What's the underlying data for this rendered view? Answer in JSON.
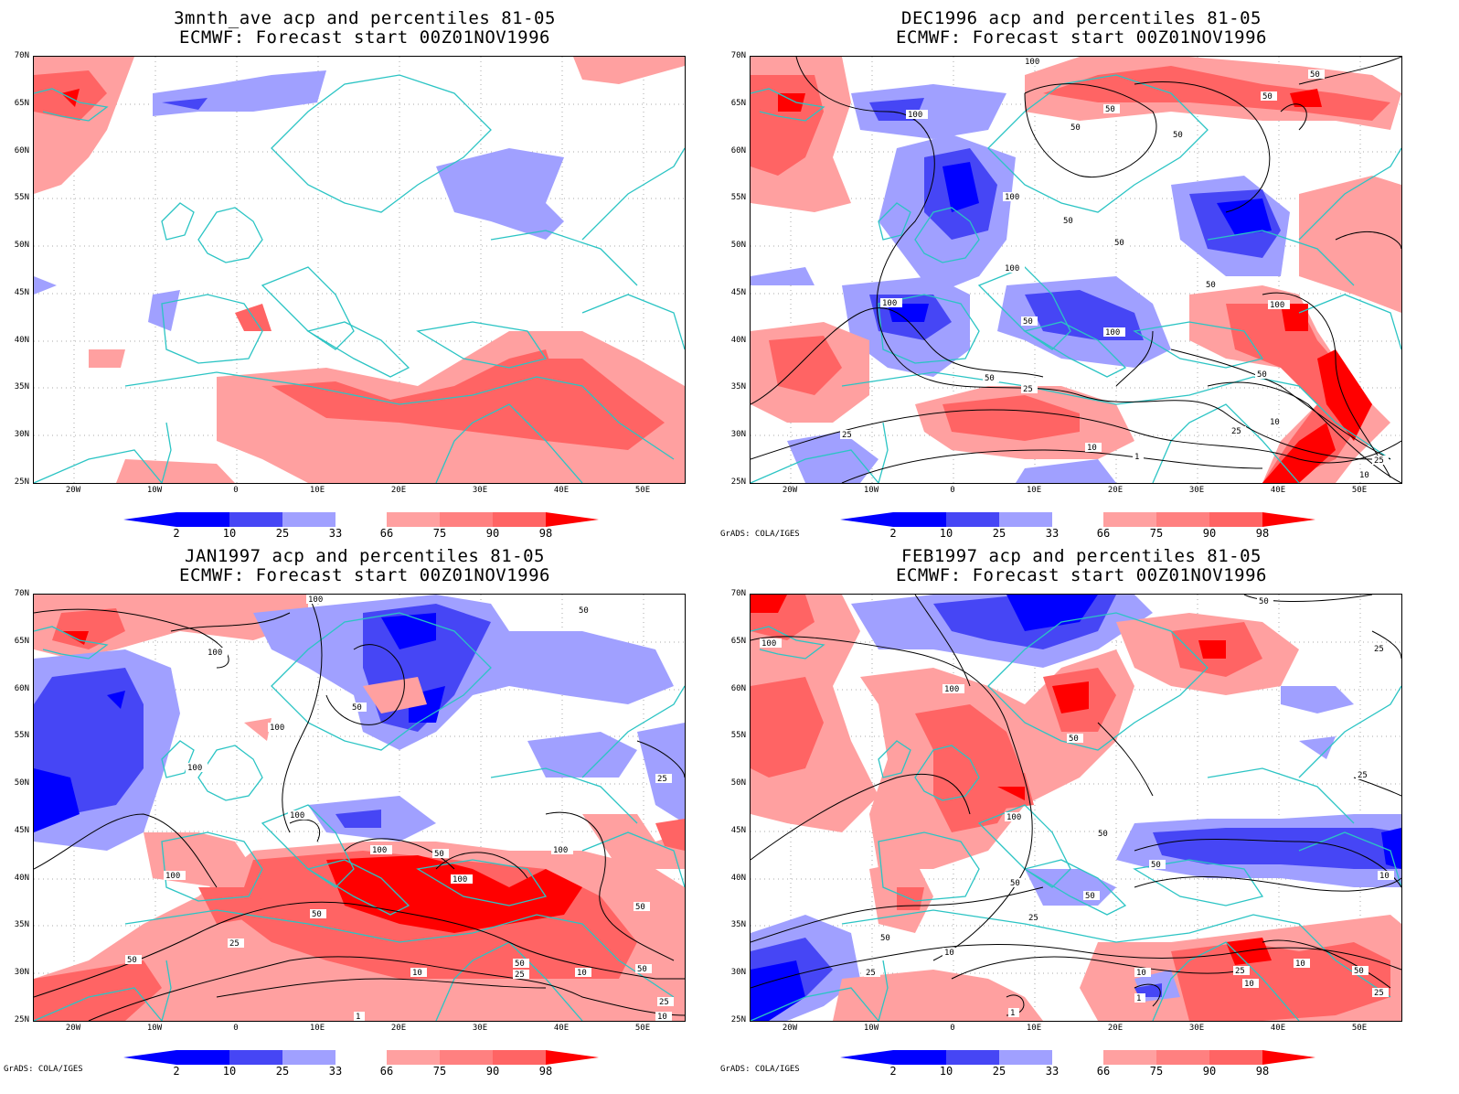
{
  "panels": [
    {
      "id": "p1",
      "line1": "3mnth_ave acp and percentiles 81-05",
      "line2": "ECMWF: Forecast start 00Z01NOV1996",
      "credit": ""
    },
    {
      "id": "p2",
      "line1": "DEC1996 acp and percentiles 81-05",
      "line2": "ECMWF: Forecast start 00Z01NOV1996",
      "credit": "GrADS: COLA/IGES"
    },
    {
      "id": "p3",
      "line1": "JAN1997 acp and percentiles 81-05",
      "line2": "ECMWF: Forecast start 00Z01NOV1996",
      "credit": "GrADS: COLA/IGES"
    },
    {
      "id": "p4",
      "line1": "FEB1997 acp and percentiles 81-05",
      "line2": "ECMWF: Forecast start 00Z01NOV1996",
      "credit": "GrADS: COLA/IGES"
    }
  ],
  "lat_labels": [
    "70N",
    "65N",
    "60N",
    "55N",
    "50N",
    "45N",
    "40N",
    "35N",
    "30N",
    "25N"
  ],
  "lon_labels": [
    "20W",
    "10W",
    "0",
    "10E",
    "20E",
    "30E",
    "40E",
    "50E"
  ],
  "colorbar_labels": [
    "2",
    "10",
    "25",
    "33",
    "66",
    "75",
    "90",
    "98"
  ],
  "colors": {
    "blue_dark": "#0000ff",
    "blue_mid": "#4646f5",
    "blue_light": "#a0a0ff",
    "red_light": "#ffa0a0",
    "red_mid": "#ff6464",
    "red_dark": "#ff0000",
    "coast": "#2bc4c4",
    "contour": "#000000"
  },
  "contour_labels": {
    "p2": [
      "100",
      "50",
      "50",
      "50",
      "100",
      "50",
      "50",
      "100",
      "100",
      "50",
      "100",
      "50",
      "100",
      "50",
      "100",
      "50",
      "50",
      "25",
      "25",
      "10",
      "1",
      "10",
      "25",
      "10",
      "50",
      "25"
    ],
    "p3": [
      "100",
      "100",
      "50",
      "100",
      "50",
      "100",
      "100",
      "100",
      "100",
      "50",
      "100",
      "100",
      "50",
      "25",
      "50",
      "10",
      "50",
      "25",
      "10",
      "50",
      "25",
      "10",
      "1",
      "50",
      "25"
    ],
    "p4": [
      "50",
      "25",
      "100",
      "100",
      "50",
      "100",
      "50",
      "50",
      "25",
      "50",
      "50",
      "10",
      "50",
      "25",
      "10",
      "10",
      "10",
      "1",
      "1",
      "25",
      "10",
      "25",
      "25",
      "50"
    ]
  }
}
